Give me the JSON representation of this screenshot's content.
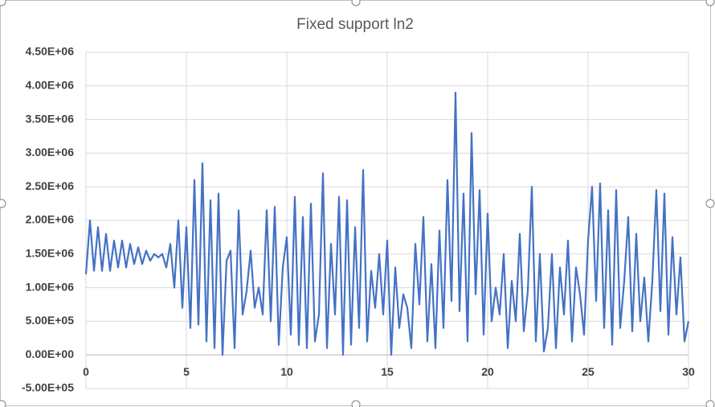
{
  "chart_data": {
    "type": "line",
    "title": "Fixed support ln2",
    "x": [
      0,
      0.2,
      0.4,
      0.6,
      0.8,
      1,
      1.2,
      1.4,
      1.6,
      1.8,
      2,
      2.2,
      2.4,
      2.6,
      2.8,
      3,
      3.2,
      3.4,
      3.6,
      3.8,
      4,
      4.2,
      4.4,
      4.6,
      4.8,
      5,
      5.2,
      5.4,
      5.6,
      5.8,
      6,
      6.2,
      6.4,
      6.6,
      6.8,
      7,
      7.2,
      7.4,
      7.6,
      7.8,
      8,
      8.2,
      8.4,
      8.6,
      8.8,
      9,
      9.2,
      9.4,
      9.6,
      9.8,
      10,
      10.2,
      10.4,
      10.6,
      10.8,
      11,
      11.2,
      11.4,
      11.6,
      11.8,
      12,
      12.2,
      12.4,
      12.6,
      12.8,
      13,
      13.2,
      13.4,
      13.6,
      13.8,
      14,
      14.2,
      14.4,
      14.6,
      14.8,
      15,
      15.2,
      15.4,
      15.6,
      15.8,
      16,
      16.2,
      16.4,
      16.6,
      16.8,
      17,
      17.2,
      17.4,
      17.6,
      17.8,
      18,
      18.2,
      18.4,
      18.6,
      18.8,
      19,
      19.2,
      19.4,
      19.6,
      19.8,
      20,
      20.2,
      20.4,
      20.6,
      20.8,
      21,
      21.2,
      21.4,
      21.6,
      21.8,
      22,
      22.2,
      22.4,
      22.6,
      22.8,
      23,
      23.2,
      23.4,
      23.6,
      23.8,
      24,
      24.2,
      24.4,
      24.6,
      24.8,
      25,
      25.2,
      25.4,
      25.6,
      25.8,
      26,
      26.2,
      26.4,
      26.6,
      26.8,
      27,
      27.2,
      27.4,
      27.6,
      27.8,
      28,
      28.2,
      28.4,
      28.6,
      28.8,
      29,
      29.2,
      29.4,
      29.6,
      29.8,
      30
    ],
    "series": [
      {
        "color": "#4472c4",
        "values": [
          1200000,
          2000000,
          1250000,
          1900000,
          1250000,
          1800000,
          1250000,
          1700000,
          1300000,
          1700000,
          1300000,
          1650000,
          1350000,
          1600000,
          1350000,
          1550000,
          1400000,
          1500000,
          1450000,
          1500000,
          1300000,
          1650000,
          1000000,
          2000000,
          700000,
          1900000,
          400000,
          2600000,
          450000,
          2850000,
          200000,
          2300000,
          100000,
          2400000,
          0,
          1400000,
          1550000,
          100000,
          2150000,
          600000,
          950000,
          1550000,
          700000,
          1000000,
          600000,
          2150000,
          500000,
          2200000,
          150000,
          1300000,
          1750000,
          300000,
          2350000,
          150000,
          2050000,
          100000,
          2250000,
          200000,
          600000,
          2700000,
          100000,
          1650000,
          600000,
          2350000,
          0,
          2300000,
          150000,
          1900000,
          400000,
          2750000,
          200000,
          1250000,
          700000,
          1500000,
          600000,
          1700000,
          0,
          1300000,
          400000,
          900000,
          700000,
          100000,
          1650000,
          750000,
          2050000,
          200000,
          1350000,
          100000,
          1850000,
          400000,
          2600000,
          800000,
          3900000,
          650000,
          2400000,
          200000,
          3300000,
          900000,
          2450000,
          300000,
          2100000,
          500000,
          1000000,
          600000,
          1500000,
          100000,
          1100000,
          500000,
          1800000,
          350000,
          950000,
          2500000,
          200000,
          1500000,
          50000,
          400000,
          1500000,
          100000,
          1300000,
          600000,
          1700000,
          200000,
          1300000,
          900000,
          300000,
          1700000,
          2500000,
          800000,
          2550000,
          400000,
          2150000,
          150000,
          2450000,
          400000,
          1100000,
          2050000,
          350000,
          1800000,
          500000,
          1150000,
          200000,
          1100000,
          2450000,
          650000,
          2400000,
          300000,
          1750000,
          600000,
          1450000,
          200000,
          500000
        ]
      }
    ],
    "xlim": [
      0,
      30
    ],
    "xticks": [
      0,
      5,
      10,
      15,
      20,
      25,
      30
    ],
    "ylim": [
      -500000,
      4500000
    ],
    "yticks": [
      {
        "value": -500000,
        "label": "-5.00E+05"
      },
      {
        "value": 0,
        "label": "0.00E+00"
      },
      {
        "value": 500000,
        "label": "5.00E+05"
      },
      {
        "value": 1000000,
        "label": "1.00E+06"
      },
      {
        "value": 1500000,
        "label": "1.50E+06"
      },
      {
        "value": 2000000,
        "label": "2.00E+06"
      },
      {
        "value": 2500000,
        "label": "2.50E+06"
      },
      {
        "value": 3000000,
        "label": "3.00E+06"
      },
      {
        "value": 3500000,
        "label": "3.50E+06"
      },
      {
        "value": 4000000,
        "label": "4.00E+06"
      },
      {
        "value": 4500000,
        "label": "4.50E+06"
      }
    ],
    "grid": true
  }
}
